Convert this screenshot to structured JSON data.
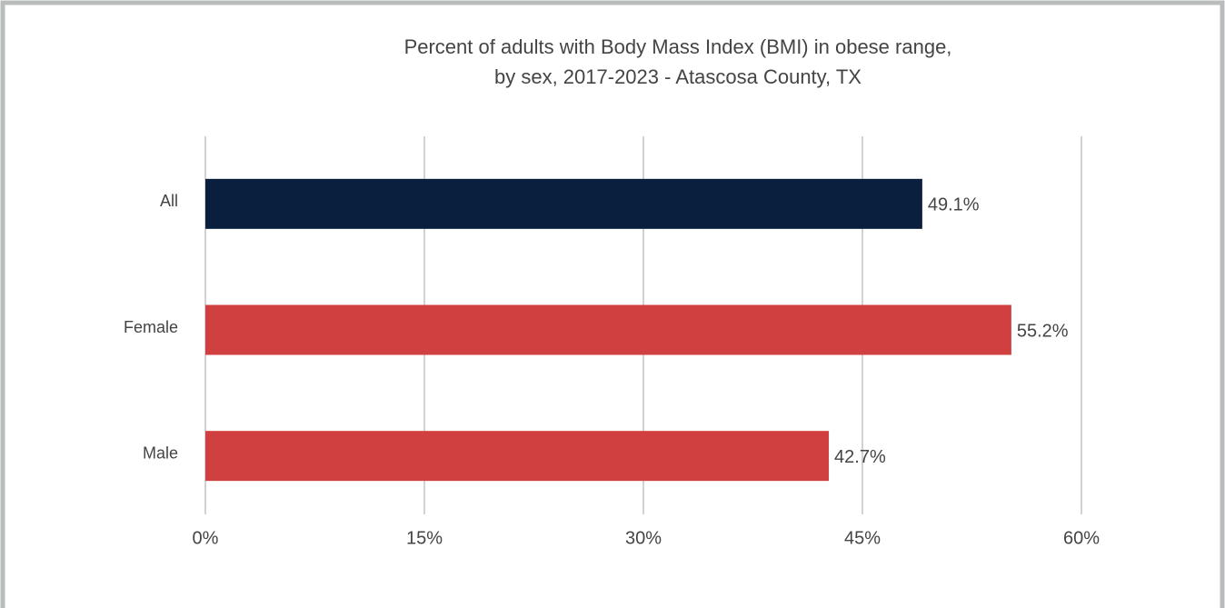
{
  "chart_data": {
    "type": "hbar",
    "title": [
      "Percent of adults with Body Mass Index (BMI) in obese range,",
      "by sex, 2017-2023 - Atascosa County, TX"
    ],
    "categories": [
      "All",
      "Female",
      "Male"
    ],
    "values": [
      49.1,
      55.2,
      42.7
    ],
    "value_labels": [
      "49.1%",
      "55.2%",
      "42.7%"
    ],
    "colors": [
      "#0a1f3d",
      "#d04040",
      "#d04040"
    ],
    "xlim": [
      0,
      60
    ],
    "xticks": [
      {
        "value": 0,
        "label": "0%"
      },
      {
        "value": 15,
        "label": "15%"
      },
      {
        "value": 30,
        "label": "30%"
      },
      {
        "value": 45,
        "label": "45%"
      },
      {
        "value": 60,
        "label": "60%"
      }
    ],
    "grid": true
  }
}
